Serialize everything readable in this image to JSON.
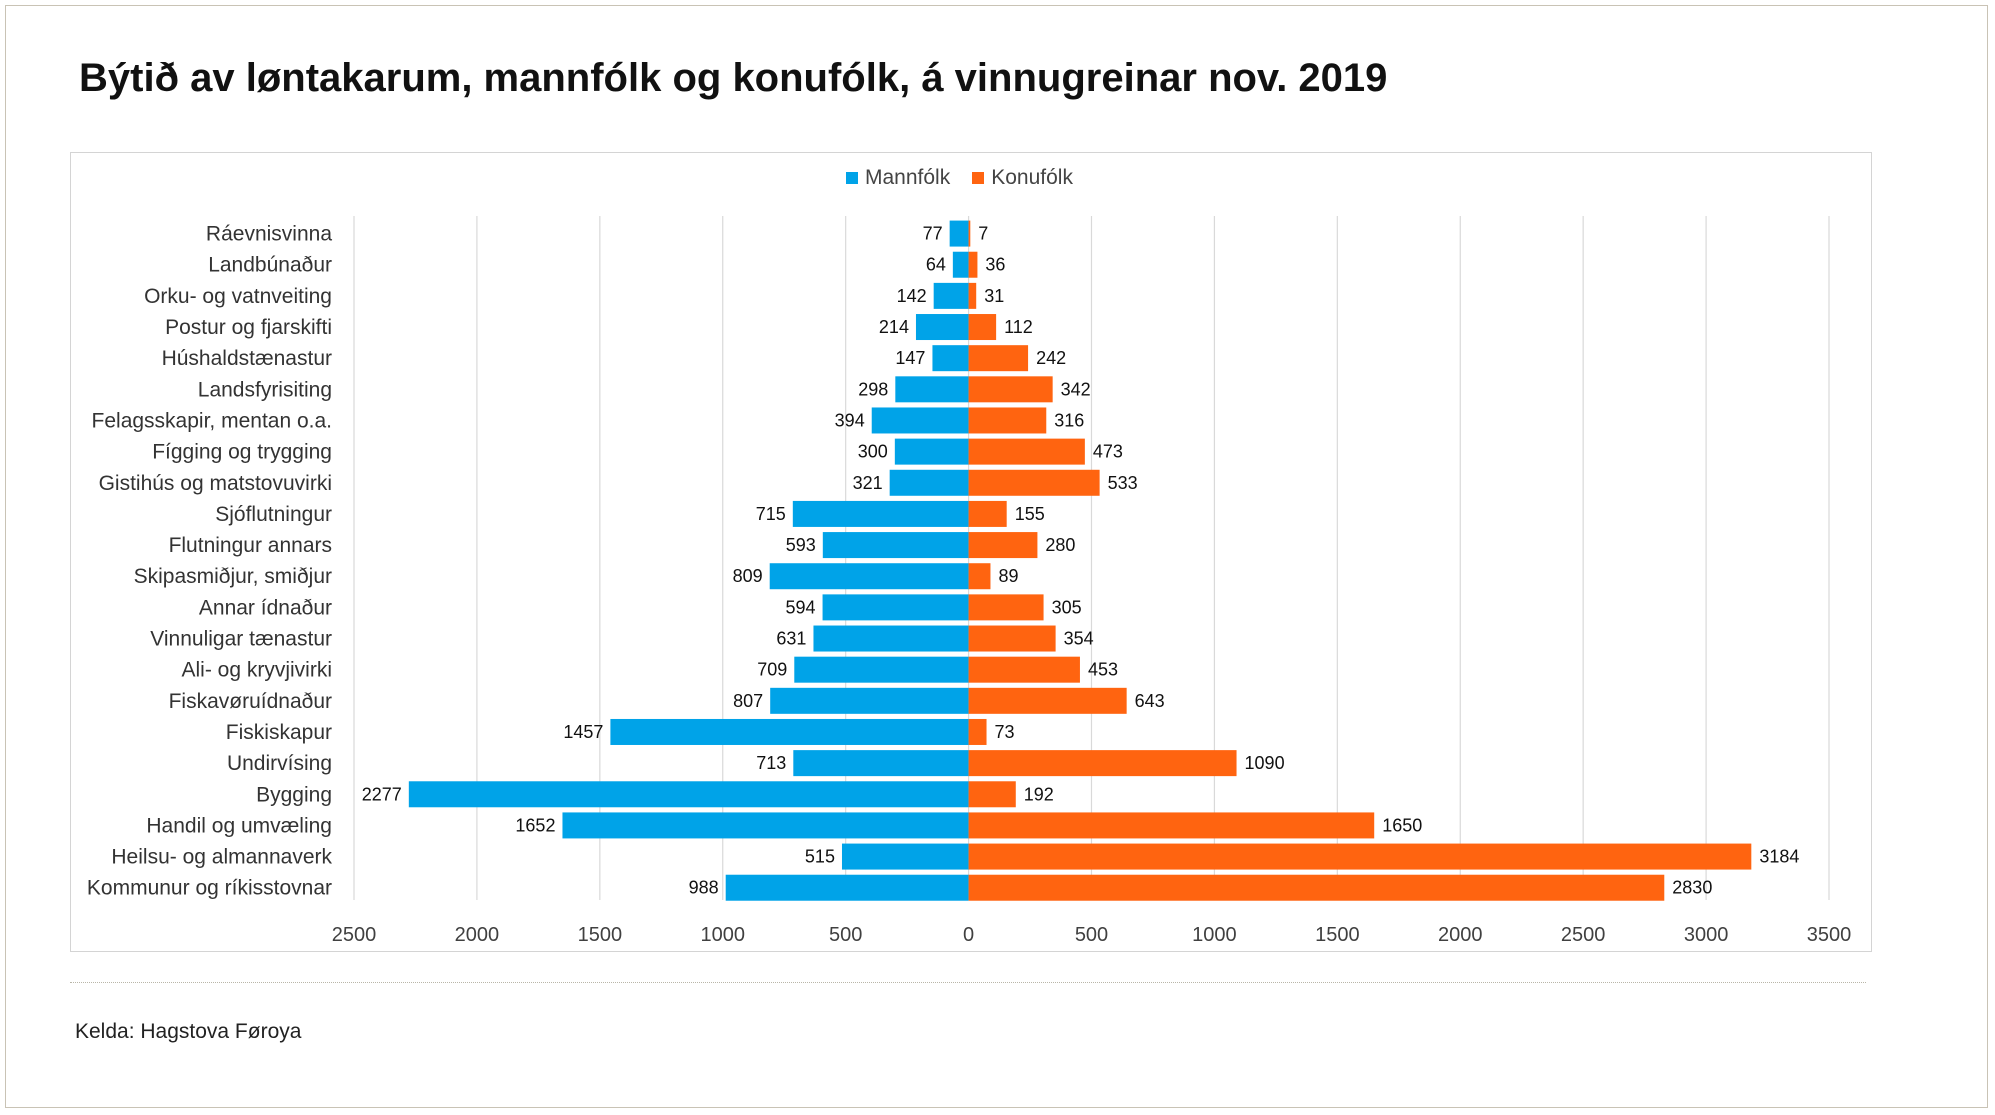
{
  "title": "Býtið av løntakarum, mannfólk og konufólk, á vinnugreinar nov. 2019",
  "source": "Kelda: Hagstova Føroya",
  "colors": {
    "male": "#00a3e8",
    "female": "#ff6410",
    "grid": "#d9d9d9"
  },
  "chart_data": {
    "type": "bar",
    "orientation": "horizontal-diverging",
    "title": "Býtið av løntakarum, mannfólk og konufólk, á vinnugreinar nov. 2019",
    "legend": [
      "Mannfólk",
      "Konufólk"
    ],
    "legend_position": "top",
    "categories": [
      "Ráevnisvinna",
      "Landbúnaður",
      "Orku- og vatnveiting",
      "Postur og fjarskifti",
      "Húshaldstænastur",
      "Landsfyrisiting",
      "Felagsskapir, mentan o.a.",
      "Fígging og trygging",
      "Gistihús og matstovuvirki",
      "Sjóflutningur",
      "Flutningur annars",
      "Skipasmiðjur, smiðjur",
      "Annar ídnaður",
      "Vinnuligar tænastur",
      "Ali- og kryvjivirki",
      "Fiskavøruídnaður",
      "Fiskiskapur",
      "Undirvísing",
      "Bygging",
      "Handil og umvæling",
      "Heilsu- og almannaverk",
      "Kommunur og ríkisstovnar"
    ],
    "series": [
      {
        "name": "Mannfólk",
        "values": [
          77,
          64,
          142,
          214,
          147,
          298,
          394,
          300,
          321,
          715,
          593,
          809,
          594,
          631,
          709,
          807,
          1457,
          713,
          2277,
          1652,
          515,
          988
        ]
      },
      {
        "name": "Konufólk",
        "values": [
          7,
          36,
          31,
          112,
          242,
          342,
          316,
          473,
          533,
          155,
          280,
          89,
          305,
          354,
          453,
          643,
          73,
          1090,
          192,
          1650,
          3184,
          2830
        ]
      }
    ],
    "xlim": [
      -2500,
      3500
    ],
    "xticks": [
      -2500,
      -2000,
      -1500,
      -1000,
      -500,
      0,
      500,
      1000,
      1500,
      2000,
      2500,
      3000,
      3500
    ],
    "xtick_labels": [
      "2500",
      "2000",
      "1500",
      "1000",
      "500",
      "0",
      "500",
      "1000",
      "1500",
      "2000",
      "2500",
      "3000",
      "3500"
    ],
    "grid": true
  }
}
